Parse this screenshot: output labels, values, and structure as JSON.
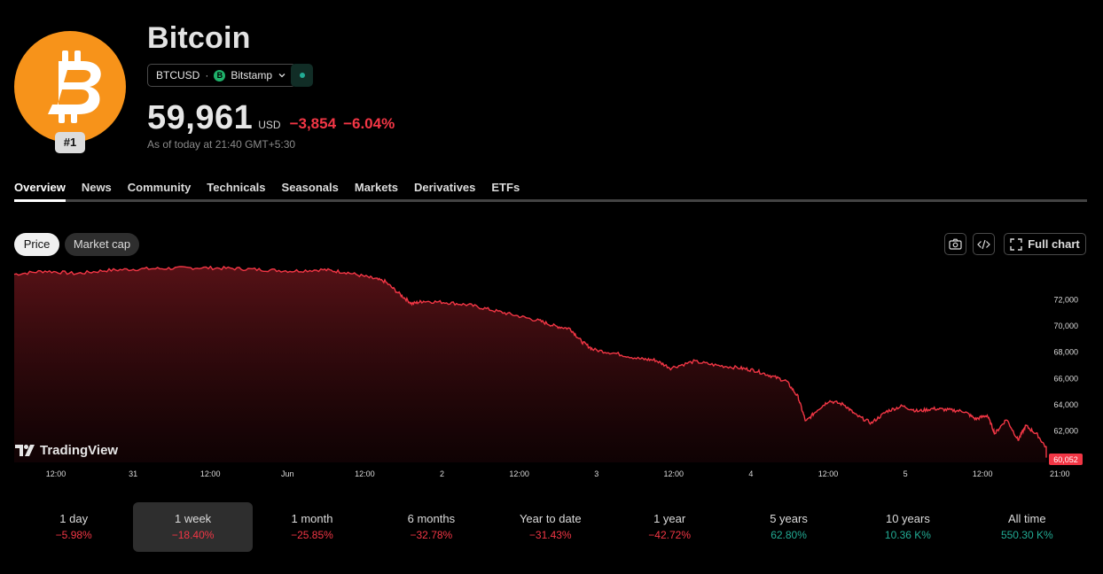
{
  "asset": {
    "name": "Bitcoin",
    "rank": "#1",
    "symbol": "BTCUSD",
    "separator": "·",
    "exchange": "Bitstamp",
    "exchange_icon_letter": "B",
    "price": "59,961",
    "currency": "USD",
    "change": "−3,854",
    "change_pct": "−6.04%",
    "as_of": "As of today at 21:40 GMT+5:30"
  },
  "tabs": [
    "Overview",
    "News",
    "Community",
    "Technicals",
    "Seasonals",
    "Markets",
    "Derivatives",
    "ETFs"
  ],
  "chart_toggle": {
    "price": "Price",
    "market_cap": "Market cap"
  },
  "toolbar": {
    "full_chart": "Full chart",
    "camera_icon": "camera-icon",
    "embed_icon": "code-icon",
    "fullscreen_icon": "fullscreen-icon"
  },
  "brand": "TradingView",
  "colors": {
    "line": "#f23645",
    "negative": "#f23645",
    "positive": "#22ab94",
    "logo": "#f7931a"
  },
  "chart_data": {
    "type": "area",
    "x_ticks": [
      "12:00",
      "31",
      "12:00",
      "Jun",
      "12:00",
      "2",
      "12:00",
      "3",
      "12:00",
      "4",
      "12:00",
      "5",
      "12:00",
      "21:00"
    ],
    "y_ticks": [
      "72,000",
      "70,000",
      "68,000",
      "66,000",
      "64,000",
      "62,000"
    ],
    "ylim": [
      59600,
      74600
    ],
    "last_value_label": "60,052",
    "x_range": [
      0,
      13.0
    ],
    "points": [
      [
        0,
        73950
      ],
      [
        0.4,
        74200
      ],
      [
        0.8,
        74000
      ],
      [
        1.2,
        74250
      ],
      [
        1.6,
        74350
      ],
      [
        2.0,
        74400
      ],
      [
        2.4,
        74450
      ],
      [
        2.8,
        74400
      ],
      [
        3.2,
        74300
      ],
      [
        3.6,
        74200
      ],
      [
        4.0,
        74300
      ],
      [
        4.3,
        74100
      ],
      [
        4.6,
        73700
      ],
      [
        4.8,
        73400
      ],
      [
        5.0,
        72400
      ],
      [
        5.15,
        71700
      ],
      [
        5.3,
        71900
      ],
      [
        5.6,
        71800
      ],
      [
        5.9,
        71600
      ],
      [
        6.2,
        71200
      ],
      [
        6.5,
        70800
      ],
      [
        6.8,
        70400
      ],
      [
        7.0,
        70000
      ],
      [
        7.2,
        69800
      ],
      [
        7.35,
        68800
      ],
      [
        7.5,
        68200
      ],
      [
        7.8,
        67900
      ],
      [
        8.1,
        67500
      ],
      [
        8.3,
        67400
      ],
      [
        8.5,
        66800
      ],
      [
        8.8,
        67300
      ],
      [
        9.1,
        67000
      ],
      [
        9.4,
        66800
      ],
      [
        9.6,
        66600
      ],
      [
        9.8,
        66200
      ],
      [
        10.0,
        65800
      ],
      [
        10.15,
        64600
      ],
      [
        10.25,
        62700
      ],
      [
        10.4,
        63600
      ],
      [
        10.55,
        64300
      ],
      [
        10.75,
        64000
      ],
      [
        10.9,
        63200
      ],
      [
        11.1,
        62600
      ],
      [
        11.3,
        63500
      ],
      [
        11.5,
        63900
      ],
      [
        11.7,
        63500
      ],
      [
        11.9,
        63700
      ],
      [
        12.1,
        63600
      ],
      [
        12.3,
        63500
      ],
      [
        12.45,
        62900
      ],
      [
        12.6,
        63200
      ],
      [
        12.7,
        61800
      ],
      [
        12.85,
        62900
      ],
      [
        13.0,
        61300
      ],
      [
        13.1,
        62400
      ],
      [
        13.25,
        61700
      ],
      [
        13.4,
        60400
      ],
      [
        13.6,
        60052
      ]
    ]
  },
  "periods": [
    {
      "label": "1 day",
      "value": "−5.98%",
      "sign": "neg"
    },
    {
      "label": "1 week",
      "value": "−18.40%",
      "sign": "neg"
    },
    {
      "label": "1 month",
      "value": "−25.85%",
      "sign": "neg"
    },
    {
      "label": "6 months",
      "value": "−32.78%",
      "sign": "neg"
    },
    {
      "label": "Year to date",
      "value": "−31.43%",
      "sign": "neg"
    },
    {
      "label": "1 year",
      "value": "−42.72%",
      "sign": "neg"
    },
    {
      "label": "5 years",
      "value": "62.80%",
      "sign": "pos"
    },
    {
      "label": "10 years",
      "value": "10.36 K%",
      "sign": "pos"
    },
    {
      "label": "All time",
      "value": "550.30 K%",
      "sign": "pos"
    }
  ]
}
